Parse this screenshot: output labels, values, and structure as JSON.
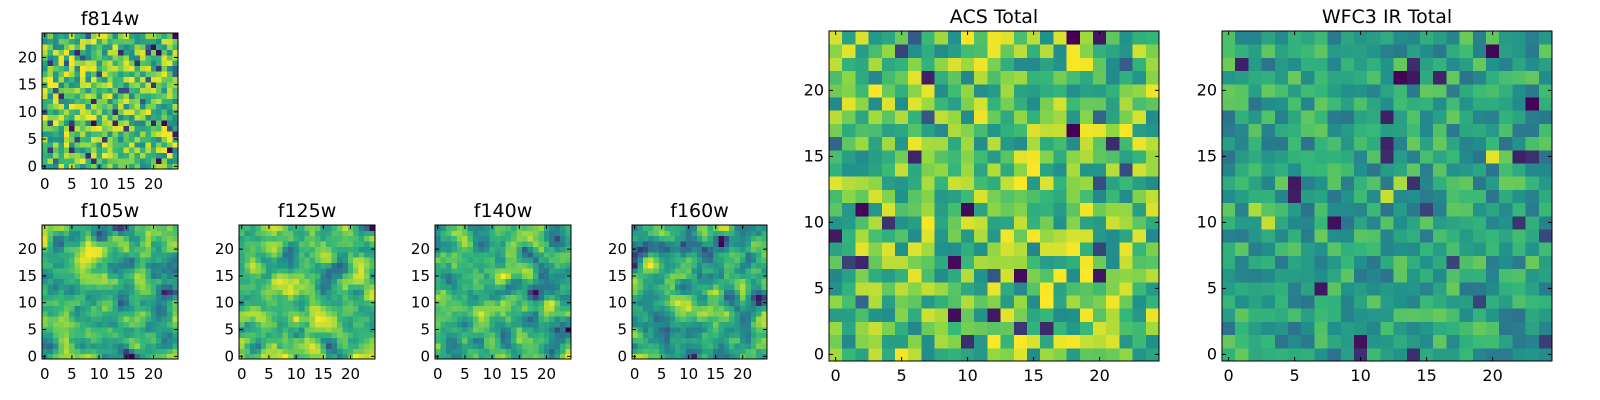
{
  "figure": {
    "type": "heatmap-grid",
    "colormap": "viridis",
    "colors": [
      "#440154",
      "#31688e",
      "#21918c",
      "#35b779",
      "#90d743",
      "#fde725"
    ]
  },
  "chart_data": [
    {
      "id": "f814w",
      "type": "heatmap",
      "title": "f814w",
      "size": 25,
      "xlim": [
        0,
        25
      ],
      "ylim": [
        0,
        25
      ],
      "xticks": [
        0,
        5,
        10,
        15,
        20
      ],
      "xtick_labels": [
        "0",
        "5",
        "10",
        "15",
        "20"
      ],
      "yticks": [
        0,
        5,
        10,
        15,
        20
      ],
      "ytick_labels": [
        "0",
        "5",
        "10",
        "15",
        "20"
      ],
      "seed": 814,
      "value_range": [
        0,
        1
      ],
      "smooth": 0
    },
    {
      "id": "f105w",
      "type": "heatmap",
      "title": "f105w",
      "size": 25,
      "xlim": [
        0,
        25
      ],
      "ylim": [
        0,
        25
      ],
      "xticks": [
        0,
        5,
        10,
        15,
        20
      ],
      "xtick_labels": [
        "0",
        "5",
        "10",
        "15",
        "20"
      ],
      "yticks": [
        0,
        5,
        10,
        15,
        20
      ],
      "ytick_labels": [
        "0",
        "5",
        "10",
        "15",
        "20"
      ],
      "seed": 105,
      "value_range": [
        0,
        1
      ],
      "smooth": 1
    },
    {
      "id": "f125w",
      "type": "heatmap",
      "title": "f125w",
      "size": 25,
      "xlim": [
        0,
        25
      ],
      "ylim": [
        0,
        25
      ],
      "xticks": [
        0,
        5,
        10,
        15,
        20
      ],
      "xtick_labels": [
        "0",
        "5",
        "10",
        "15",
        "20"
      ],
      "yticks": [
        0,
        5,
        10,
        15,
        20
      ],
      "ytick_labels": [
        "0",
        "5",
        "10",
        "15",
        "20"
      ],
      "seed": 125,
      "value_range": [
        0,
        1
      ],
      "smooth": 1
    },
    {
      "id": "f140w",
      "type": "heatmap",
      "title": "f140w",
      "size": 25,
      "xlim": [
        0,
        25
      ],
      "ylim": [
        0,
        25
      ],
      "xticks": [
        0,
        5,
        10,
        15,
        20
      ],
      "xtick_labels": [
        "0",
        "5",
        "10",
        "15",
        "20"
      ],
      "yticks": [
        0,
        5,
        10,
        15,
        20
      ],
      "ytick_labels": [
        "0",
        "5",
        "10",
        "15",
        "20"
      ],
      "seed": 140,
      "value_range": [
        0,
        1
      ],
      "smooth": 1
    },
    {
      "id": "f160w",
      "type": "heatmap",
      "title": "f160w",
      "size": 25,
      "xlim": [
        0,
        25
      ],
      "ylim": [
        0,
        25
      ],
      "xticks": [
        0,
        5,
        10,
        15,
        20
      ],
      "xtick_labels": [
        "0",
        "5",
        "10",
        "15",
        "20"
      ],
      "yticks": [
        0,
        5,
        10,
        15,
        20
      ],
      "ytick_labels": [
        "0",
        "5",
        "10",
        "15",
        "20"
      ],
      "seed": 160,
      "value_range": [
        0,
        1
      ],
      "smooth": 1
    },
    {
      "id": "acs-total",
      "type": "heatmap",
      "title": "ACS Total",
      "size": 25,
      "xlim": [
        0,
        25
      ],
      "ylim": [
        0,
        25
      ],
      "xticks": [
        0,
        5,
        10,
        15,
        20
      ],
      "xtick_labels": [
        "0",
        "5",
        "10",
        "15",
        "20"
      ],
      "yticks": [
        0,
        5,
        10,
        15,
        20
      ],
      "ytick_labels": [
        "0",
        "5",
        "10",
        "15",
        "20"
      ],
      "seed": 3301,
      "value_range": [
        0,
        1
      ],
      "smooth": 0
    },
    {
      "id": "wfc3-ir-total",
      "type": "heatmap",
      "title": "WFC3 IR Total",
      "size": 25,
      "xlim": [
        0,
        25
      ],
      "ylim": [
        0,
        25
      ],
      "xticks": [
        0,
        5,
        10,
        15,
        20
      ],
      "xtick_labels": [
        "0",
        "5",
        "10",
        "15",
        "20"
      ],
      "yticks": [
        0,
        5,
        10,
        15,
        20
      ],
      "ytick_labels": [
        "0",
        "5",
        "10",
        "15",
        "20"
      ],
      "seed": 7707,
      "value_range": [
        0,
        1
      ],
      "smooth": 0,
      "hotspots": [
        [
          20,
          15,
          0.95
        ],
        [
          12,
          12,
          0.9
        ],
        [
          13,
          13,
          0.85
        ],
        [
          3,
          10,
          0.9
        ],
        [
          2,
          11,
          0.85
        ]
      ]
    }
  ]
}
